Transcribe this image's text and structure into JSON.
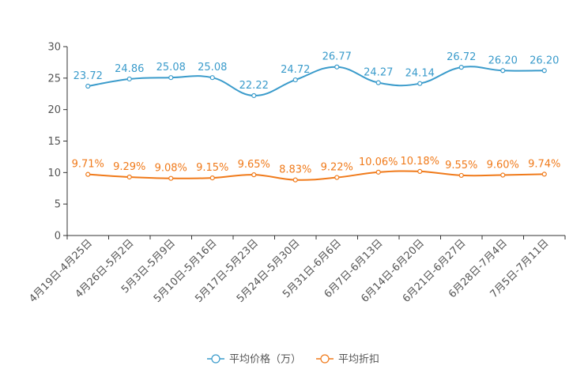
{
  "chart_data": {
    "type": "line",
    "categories": [
      "4月19日-4月25日",
      "4月26日-5月2日",
      "5月3日-5月9日",
      "5月10日-5月16日",
      "5月17日-5月23日",
      "5月24日-5月30日",
      "5月31日-6月6日",
      "6月7日-6月13日",
      "6月14日-6月20日",
      "6月21日-6月27日",
      "6月28日-7月4日",
      "7月5日-7月11日"
    ],
    "ylim": [
      0,
      30
    ],
    "yticks": [
      0,
      5,
      10,
      15,
      20,
      25,
      30
    ],
    "series": [
      {
        "name": "平均价格（万）",
        "color": "#3a9bcb",
        "values": [
          23.72,
          24.86,
          25.08,
          25.08,
          22.22,
          24.72,
          26.77,
          24.27,
          24.14,
          26.72,
          26.2,
          26.2
        ],
        "labels": [
          "23.72",
          "24.86",
          "25.08",
          "25.08",
          "22.22",
          "24.72",
          "26.77",
          "24.27",
          "24.14",
          "26.72",
          "26.20",
          "26.20"
        ]
      },
      {
        "name": "平均折扣",
        "color": "#f07a1a",
        "values": [
          9.71,
          9.29,
          9.08,
          9.15,
          9.65,
          8.83,
          9.22,
          10.06,
          10.18,
          9.55,
          9.6,
          9.74
        ],
        "labels": [
          "9.71%",
          "9.29%",
          "9.08%",
          "9.15%",
          "9.65%",
          "8.83%",
          "9.22%",
          "10.06%",
          "10.18%",
          "9.55%",
          "9.60%",
          "9.74%"
        ]
      }
    ]
  }
}
